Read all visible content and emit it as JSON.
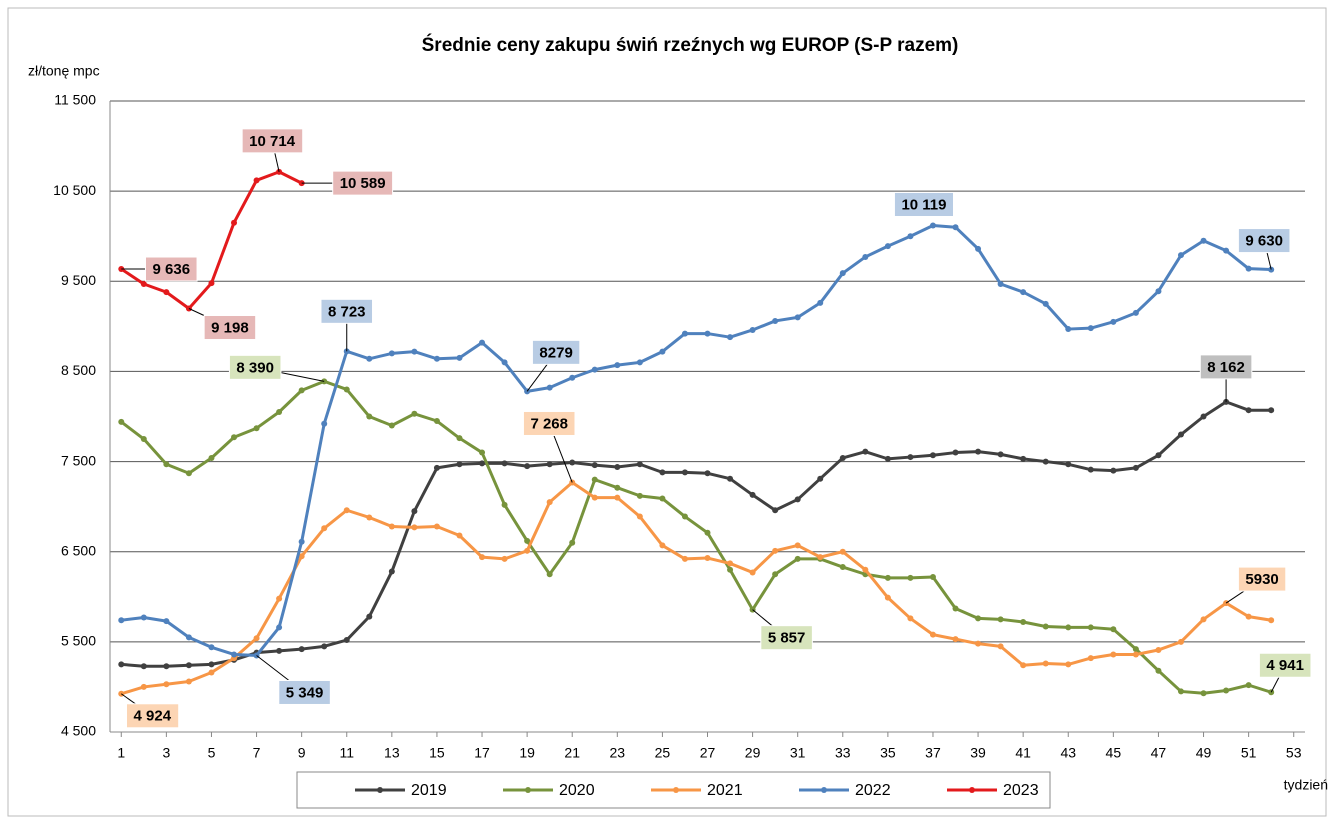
{
  "chart_data": {
    "type": "line",
    "title": "Średnie ceny zakupu świń rzeźnych wg EUROP (S-P razem)",
    "y_label": "zł/tonę mpc",
    "x_label": "tydzień",
    "x": [
      1,
      2,
      3,
      4,
      5,
      6,
      7,
      8,
      9,
      10,
      11,
      12,
      13,
      14,
      15,
      16,
      17,
      18,
      19,
      20,
      21,
      22,
      23,
      24,
      25,
      26,
      27,
      28,
      29,
      30,
      31,
      32,
      33,
      34,
      35,
      36,
      37,
      38,
      39,
      40,
      41,
      42,
      43,
      44,
      45,
      46,
      47,
      48,
      49,
      50,
      51,
      52
    ],
    "xlim": [
      0.5,
      53.5
    ],
    "xticks": [
      1,
      3,
      5,
      7,
      9,
      11,
      13,
      15,
      17,
      19,
      21,
      23,
      25,
      27,
      29,
      31,
      33,
      35,
      37,
      39,
      41,
      43,
      45,
      47,
      49,
      51,
      53
    ],
    "ylim": [
      4500,
      11500
    ],
    "yticks": [
      {
        "value": 4500,
        "label": "4 500"
      },
      {
        "value": 5500,
        "label": "5 500"
      },
      {
        "value": 6500,
        "label": "6 500"
      },
      {
        "value": 7500,
        "label": "7 500"
      },
      {
        "value": 8500,
        "label": "8 500"
      },
      {
        "value": 9500,
        "label": "9 500"
      },
      {
        "value": 10500,
        "label": "10 500"
      },
      {
        "value": 11500,
        "label": "11 500"
      }
    ],
    "grid": true,
    "series": [
      {
        "name": "2019",
        "color": "#404040",
        "label_color": "#bfbfbf",
        "values": [
          5250,
          5230,
          5230,
          5240,
          5250,
          5300,
          5380,
          5400,
          5420,
          5450,
          5520,
          5780,
          6280,
          6950,
          7430,
          7470,
          7480,
          7480,
          7450,
          7470,
          7490,
          7460,
          7440,
          7470,
          7380,
          7380,
          7370,
          7310,
          7130,
          6960,
          7080,
          7310,
          7540,
          7610,
          7530,
          7550,
          7570,
          7600,
          7610,
          7580,
          7530,
          7500,
          7470,
          7410,
          7400,
          7430,
          7570,
          7800,
          8000,
          8162,
          8070,
          8070
        ],
        "value_labels": [
          null,
          null,
          null,
          null,
          null,
          null,
          null,
          null,
          null,
          null,
          null,
          null,
          null,
          null,
          null,
          null,
          null,
          null,
          null,
          null,
          null,
          null,
          null,
          null,
          null,
          null,
          null,
          null,
          null,
          null,
          null,
          null,
          null,
          null,
          null,
          null,
          null,
          null,
          null,
          null,
          null,
          null,
          null,
          null,
          null,
          null,
          null,
          null,
          null,
          "8 162",
          null,
          null
        ]
      },
      {
        "name": "2020",
        "color": "#77933c",
        "label_color": "#d7e4bc",
        "values": [
          7940,
          7750,
          7470,
          7370,
          7540,
          7770,
          7870,
          8050,
          8290,
          8390,
          8300,
          8000,
          7900,
          8030,
          7950,
          7760,
          7600,
          7020,
          6620,
          6250,
          6600,
          7300,
          7210,
          7120,
          7090,
          6890,
          6710,
          6300,
          5857,
          6250,
          6420,
          6420,
          6330,
          6250,
          6210,
          6210,
          6220,
          5870,
          5760,
          5750,
          5720,
          5670,
          5660,
          5660,
          5640,
          5420,
          5180,
          4950,
          4930,
          4960,
          5020,
          4941
        ],
        "value_labels": [
          null,
          null,
          null,
          null,
          null,
          null,
          null,
          null,
          null,
          "8 390",
          null,
          null,
          null,
          null,
          null,
          null,
          null,
          null,
          null,
          null,
          null,
          null,
          null,
          null,
          null,
          null,
          null,
          null,
          "5 857",
          null,
          null,
          null,
          null,
          null,
          null,
          null,
          null,
          null,
          null,
          null,
          null,
          null,
          null,
          null,
          null,
          null,
          null,
          null,
          null,
          null,
          null,
          "4 941"
        ]
      },
      {
        "name": "2021",
        "color": "#f79646",
        "label_color": "#fcd5b4",
        "values": [
          4924,
          5000,
          5030,
          5060,
          5160,
          5320,
          5540,
          5980,
          6450,
          6760,
          6960,
          6880,
          6780,
          6770,
          6780,
          6680,
          6440,
          6420,
          6510,
          7050,
          7268,
          7100,
          7100,
          6890,
          6570,
          6420,
          6430,
          6370,
          6270,
          6510,
          6570,
          6440,
          6500,
          6300,
          5990,
          5760,
          5580,
          5530,
          5480,
          5450,
          5240,
          5260,
          5250,
          5320,
          5360,
          5360,
          5410,
          5500,
          5750,
          5930,
          5780,
          5740
        ],
        "value_labels": [
          "4 924",
          null,
          null,
          null,
          null,
          null,
          null,
          null,
          null,
          null,
          null,
          null,
          null,
          null,
          null,
          null,
          null,
          null,
          null,
          null,
          "7 268",
          null,
          null,
          null,
          null,
          null,
          null,
          null,
          null,
          null,
          null,
          null,
          null,
          null,
          null,
          null,
          null,
          null,
          null,
          null,
          null,
          null,
          null,
          null,
          null,
          null,
          null,
          null,
          null,
          "5930",
          null,
          null
        ]
      },
      {
        "name": "2022",
        "color": "#4f81bd",
        "label_color": "#b8cce4",
        "values": [
          5740,
          5770,
          5730,
          5550,
          5440,
          5360,
          5349,
          5660,
          6610,
          7920,
          8723,
          8640,
          8700,
          8720,
          8640,
          8650,
          8820,
          8600,
          8279,
          8320,
          8430,
          8520,
          8570,
          8600,
          8720,
          8920,
          8920,
          8880,
          8960,
          9060,
          9100,
          9260,
          9590,
          9770,
          9890,
          10000,
          10119,
          10100,
          9860,
          9470,
          9380,
          9250,
          8970,
          8980,
          9050,
          9150,
          9390,
          9790,
          9950,
          9840,
          9640,
          9630
        ],
        "value_labels": [
          null,
          null,
          null,
          null,
          null,
          null,
          "5 349",
          null,
          null,
          null,
          "8 723",
          null,
          null,
          null,
          null,
          null,
          null,
          null,
          "8279",
          null,
          null,
          null,
          null,
          null,
          null,
          null,
          null,
          null,
          null,
          null,
          null,
          null,
          null,
          null,
          null,
          null,
          "10 119",
          null,
          null,
          null,
          null,
          null,
          null,
          null,
          null,
          null,
          null,
          null,
          null,
          null,
          null,
          "9 630"
        ]
      },
      {
        "name": "2023",
        "color": "#e31a1c",
        "label_color": "#e6b8b7",
        "values": [
          9636,
          9470,
          9380,
          9198,
          9480,
          10150,
          10620,
          10714,
          10589,
          null,
          null,
          null,
          null,
          null,
          null,
          null,
          null,
          null,
          null,
          null,
          null,
          null,
          null,
          null,
          null,
          null,
          null,
          null,
          null,
          null,
          null,
          null,
          null,
          null,
          null,
          null,
          null,
          null,
          null,
          null,
          null,
          null,
          null,
          null,
          null,
          null,
          null,
          null,
          null,
          null,
          null,
          null
        ],
        "value_labels": [
          "9 636",
          null,
          null,
          "9 198",
          null,
          null,
          null,
          "10 714",
          "10 589",
          null,
          null,
          null,
          null,
          null,
          null,
          null,
          null,
          null,
          null,
          null,
          null,
          null,
          null,
          null,
          null,
          null,
          null,
          null,
          null,
          null,
          null,
          null,
          null,
          null,
          null,
          null,
          null,
          null,
          null,
          null,
          null,
          null,
          null,
          null,
          null,
          null,
          null,
          null,
          null,
          null,
          null,
          null
        ]
      }
    ]
  }
}
